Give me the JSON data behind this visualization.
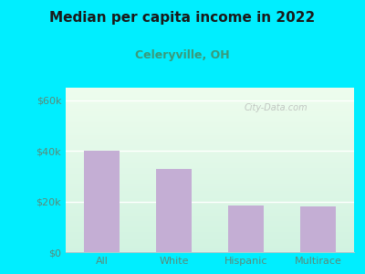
{
  "title": "Median per capita income in 2022",
  "subtitle": "Celeryville, OH",
  "categories": [
    "All",
    "White",
    "Hispanic",
    "Multirace"
  ],
  "values": [
    40000,
    33000,
    18500,
    18000
  ],
  "bar_color": "#c4aed4",
  "title_fontsize": 11,
  "subtitle_fontsize": 9,
  "subtitle_color": "#3a9a7a",
  "title_color": "#1a1a1a",
  "tick_label_color": "#5a8a7a",
  "background_outer": "#00eeff",
  "ylim": [
    0,
    65000
  ],
  "yticks": [
    0,
    20000,
    40000,
    60000
  ],
  "ytick_labels": [
    "$0",
    "$20k",
    "$40k",
    "$60k"
  ],
  "watermark": "City-Data.com"
}
